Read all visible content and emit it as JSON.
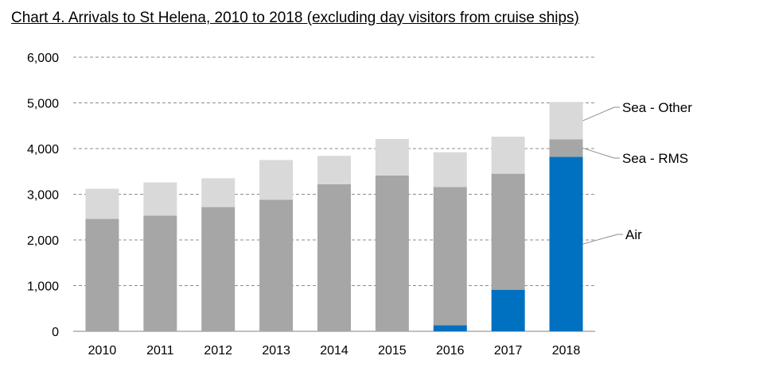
{
  "chart_data": {
    "type": "bar",
    "stacked": true,
    "title": "Chart 4. Arrivals to St Helena, 2010 to 2018 (excluding day visitors from cruise ships)",
    "categories": [
      "2010",
      "2011",
      "2012",
      "2013",
      "2014",
      "2015",
      "2016",
      "2017",
      "2018"
    ],
    "series": [
      {
        "name": "Air",
        "color": "#0070c0",
        "values": [
          0,
          0,
          0,
          0,
          0,
          0,
          130,
          910,
          3820
        ]
      },
      {
        "name": "Sea - RMS",
        "color": "#a6a6a6",
        "values": [
          2460,
          2530,
          2720,
          2880,
          3220,
          3410,
          3030,
          2540,
          380
        ]
      },
      {
        "name": "Sea - Other",
        "color": "#d9d9d9",
        "values": [
          660,
          730,
          630,
          870,
          620,
          800,
          760,
          810,
          820
        ]
      }
    ],
    "ylim": [
      0,
      6000
    ],
    "yticks": [
      0,
      1000,
      2000,
      3000,
      4000,
      5000,
      6000
    ],
    "ytick_labels": [
      "0",
      "1,000",
      "2,000",
      "3,000",
      "4,000",
      "5,000",
      "6,000"
    ],
    "grid": true,
    "legend": "right, labelled with leader lines"
  }
}
